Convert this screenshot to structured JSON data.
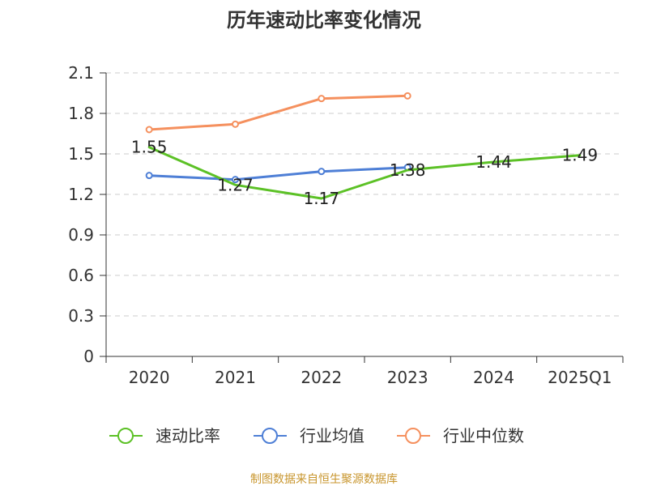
{
  "chart_data": {
    "type": "line",
    "title": "历年速动比率变化情况",
    "categories": [
      "2020",
      "2021",
      "2022",
      "2023",
      "2024",
      "2025Q1"
    ],
    "y_ticks": [
      "0",
      "0.3",
      "0.6",
      "0.9",
      "1.2",
      "1.5",
      "1.8",
      "2.1"
    ],
    "ylim": [
      0,
      2.1
    ],
    "grid": true,
    "legend_position": "bottom",
    "series": [
      {
        "name": "速动比率",
        "color": "#5cc126",
        "values": [
          1.55,
          1.27,
          1.17,
          1.38,
          1.44,
          1.49
        ],
        "labels": [
          "1.55",
          "1.27",
          "1.17",
          "1.38",
          "1.44",
          "1.49"
        ],
        "show_markers": false,
        "show_labels": true
      },
      {
        "name": "行业均值",
        "color": "#4e7fd6",
        "values": [
          1.34,
          1.31,
          1.37,
          1.4,
          null,
          null
        ],
        "show_markers": true,
        "show_labels": false
      },
      {
        "name": "行业中位数",
        "color": "#f5905e",
        "values": [
          1.68,
          1.72,
          1.91,
          1.93,
          null,
          null
        ],
        "show_markers": true,
        "show_labels": false
      }
    ]
  },
  "footer": {
    "text": "制图数据来自恒生聚源数据库",
    "color": "#c8962e"
  }
}
